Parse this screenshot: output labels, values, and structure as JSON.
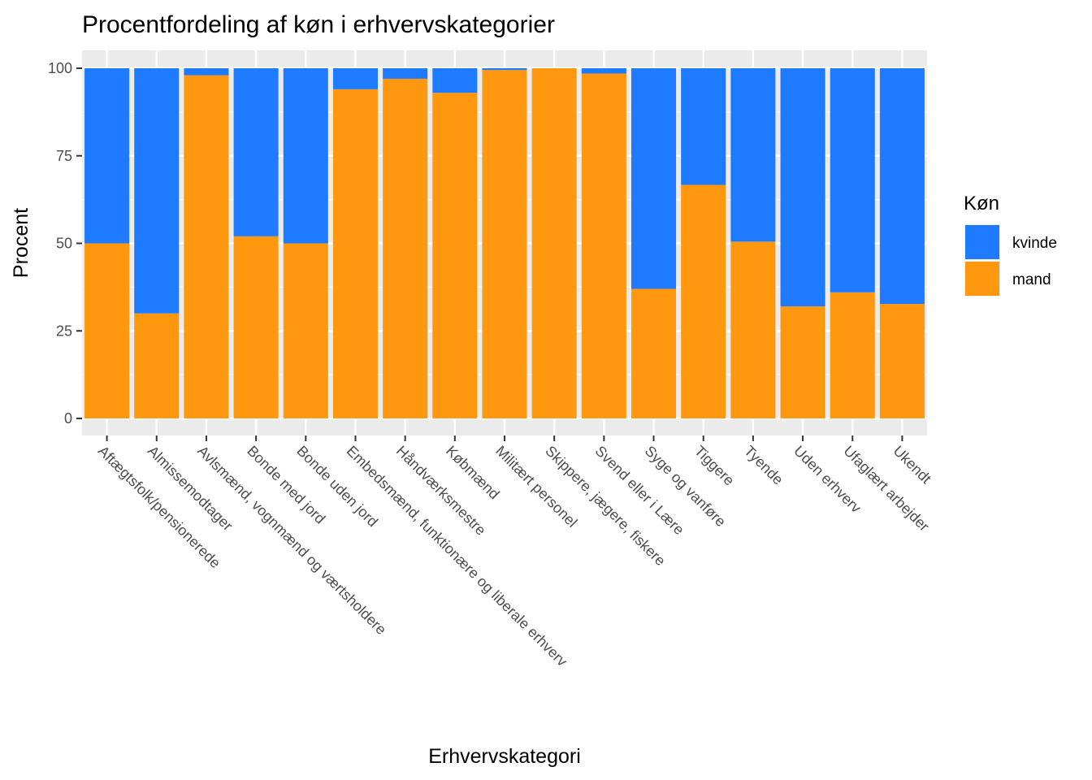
{
  "chart_data": {
    "type": "bar",
    "stacked": true,
    "title": "Procentfordeling af køn i erhvervskategorier",
    "xlabel": "Erhvervskategori",
    "ylabel": "Procent",
    "ylim": [
      0,
      100
    ],
    "yticks": [
      0,
      25,
      50,
      75,
      100
    ],
    "grid": true,
    "legend": {
      "title": "Køn",
      "position": "right"
    },
    "categories": [
      "Aftægtsfolk/pensionerede",
      "Almissemodtager",
      "Avlsmænd, vognmænd og værtsholdere",
      "Bonde med jord",
      "Bonde uden jord",
      "Embedsmænd, funktionære og liberale erhverv",
      "Håndværksmestre",
      "Købmænd",
      "Militært personel",
      "Skippere, jægere, fiskere",
      "Svend eller i Lære",
      "Syge og vanføre",
      "Tiggere",
      "Tyende",
      "Uden erhverv",
      "Ufaglært arbejder",
      "Ukendt"
    ],
    "series": [
      {
        "name": "kvinde",
        "color": "#1E7BFF",
        "values": [
          50,
          70,
          2,
          48,
          50,
          6,
          3,
          7,
          0.5,
          0,
          1.5,
          63,
          33.3,
          49.5,
          68,
          64,
          67.3
        ]
      },
      {
        "name": "mand",
        "color": "#FF970F",
        "values": [
          50,
          30,
          98,
          52,
          50,
          94,
          97,
          93,
          99.5,
          100,
          98.5,
          37,
          66.7,
          50.5,
          32,
          36,
          32.7
        ]
      }
    ]
  }
}
